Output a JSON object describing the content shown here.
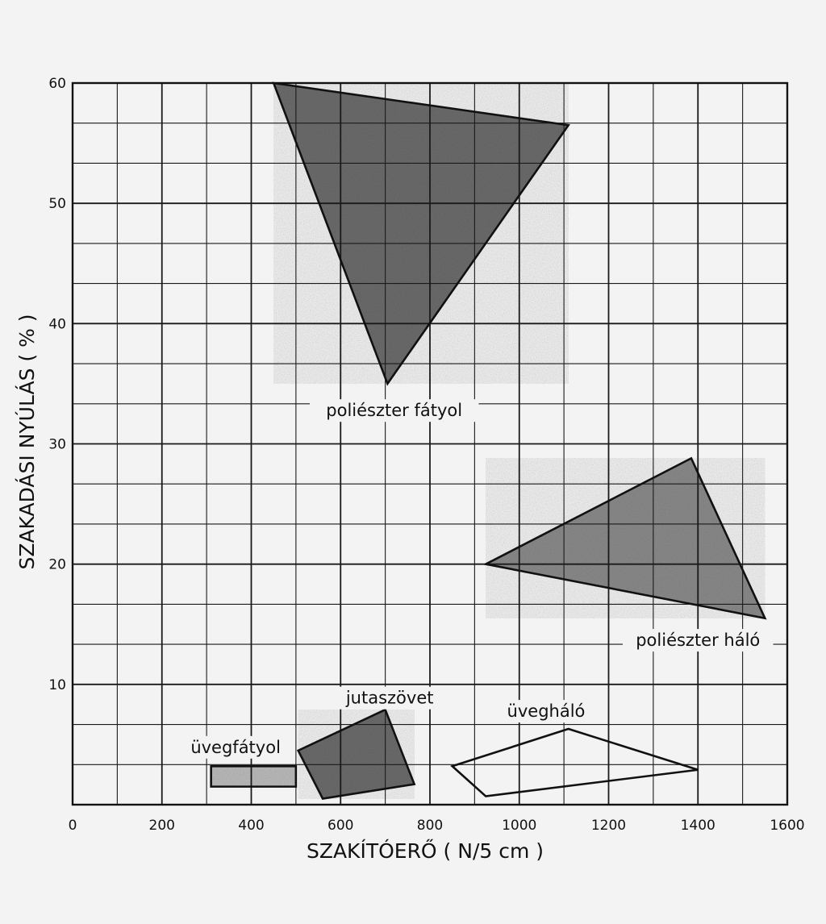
{
  "chart_data": {
    "type": "area",
    "xlabel": "SZAKÍTÓERŐ ( N/5 cm )",
    "ylabel": "SZAKADÁSI NYÚLÁS ( % )",
    "xlim": [
      0,
      1600
    ],
    "ylim": [
      0,
      60
    ],
    "x_ticks": [
      "0",
      "200",
      "400",
      "600",
      "800",
      "1000",
      "1200",
      "1400",
      "1600"
    ],
    "y_ticks": [
      "10",
      "20",
      "30",
      "40",
      "50",
      "60"
    ],
    "grid": true,
    "regions": [
      {
        "name": "poliészter fátyol",
        "fill": "dark-shaded",
        "points": [
          [
            450,
            60
          ],
          [
            1110,
            56.5
          ],
          [
            705,
            35
          ]
        ]
      },
      {
        "name": "poliészter háló",
        "fill": "medium-shaded",
        "points": [
          [
            925,
            20
          ],
          [
            1385,
            28.8
          ],
          [
            1550,
            15.5
          ]
        ]
      },
      {
        "name": "jutaszövet",
        "fill": "dark-shaded",
        "points": [
          [
            505,
            4.5
          ],
          [
            700,
            7.9
          ],
          [
            765,
            1.7
          ],
          [
            560,
            0.5
          ]
        ]
      },
      {
        "name": "üvegháló",
        "fill": "none",
        "points": [
          [
            850,
            3.2
          ],
          [
            1110,
            6.3
          ],
          [
            1400,
            2.9
          ],
          [
            925,
            0.7
          ]
        ]
      },
      {
        "name": "üvegfátyol",
        "fill": "light-shaded",
        "points": [
          [
            310,
            3.2
          ],
          [
            500,
            3.2
          ],
          [
            500,
            1.5
          ],
          [
            310,
            1.5
          ]
        ]
      }
    ]
  }
}
